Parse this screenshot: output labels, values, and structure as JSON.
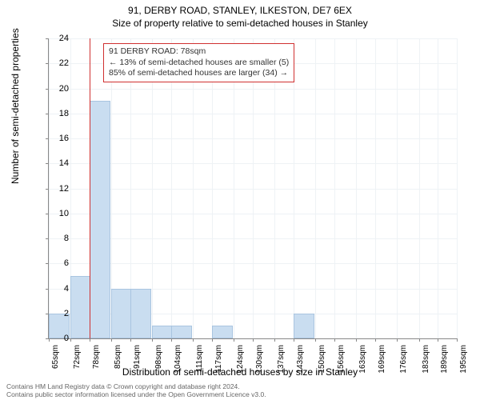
{
  "chart": {
    "type": "histogram",
    "title_main": "91, DERBY ROAD, STANLEY, ILKESTON, DE7 6EX",
    "title_sub": "Size of property relative to semi-detached houses in Stanley",
    "ylabel": "Number of semi-detached properties",
    "xlabel": "Distribution of semi-detached houses by size in Stanley",
    "background_color": "#ffffff",
    "grid_color": "#eef2f5",
    "axis_color": "#888888",
    "bar_fill": "#c9ddf0",
    "bar_border": "#a9c5e0",
    "marker_color": "#d03030",
    "marker_value": 78,
    "ylim": [
      0,
      24
    ],
    "ytick_step": 2,
    "xlim": [
      65,
      195
    ],
    "x_ticks": [
      65,
      72,
      78,
      85,
      91,
      98,
      104,
      111,
      117,
      124,
      130,
      137,
      143,
      150,
      156,
      163,
      169,
      176,
      183,
      189,
      195
    ],
    "x_tick_unit": "sqm",
    "bar_width_sqm": 6.5,
    "bars": [
      {
        "x": 65,
        "y": 2
      },
      {
        "x": 72,
        "y": 5
      },
      {
        "x": 78,
        "y": 19
      },
      {
        "x": 85,
        "y": 4
      },
      {
        "x": 91,
        "y": 4
      },
      {
        "x": 98,
        "y": 1
      },
      {
        "x": 104,
        "y": 1
      },
      {
        "x": 111,
        "y": 0
      },
      {
        "x": 117,
        "y": 1
      },
      {
        "x": 124,
        "y": 0
      },
      {
        "x": 130,
        "y": 0
      },
      {
        "x": 137,
        "y": 0
      },
      {
        "x": 143,
        "y": 2
      },
      {
        "x": 150,
        "y": 0
      },
      {
        "x": 156,
        "y": 0
      },
      {
        "x": 163,
        "y": 0
      },
      {
        "x": 169,
        "y": 0
      },
      {
        "x": 176,
        "y": 0
      },
      {
        "x": 183,
        "y": 0
      },
      {
        "x": 189,
        "y": 0
      }
    ],
    "annotation": {
      "line1": "91 DERBY ROAD: 78sqm",
      "line2": "← 13% of semi-detached houses are smaller (5)",
      "line3": "85% of semi-detached houses are larger (34) →",
      "border_color": "#d03030",
      "fontsize": 10.5
    },
    "title_fontsize": 12,
    "label_fontsize": 12,
    "tick_fontsize": 11
  },
  "footer": {
    "line1": "Contains HM Land Registry data © Crown copyright and database right 2024.",
    "line2": "Contains public sector information licensed under the Open Government Licence v3.0.",
    "fontsize": 8.5,
    "color": "#666666"
  }
}
